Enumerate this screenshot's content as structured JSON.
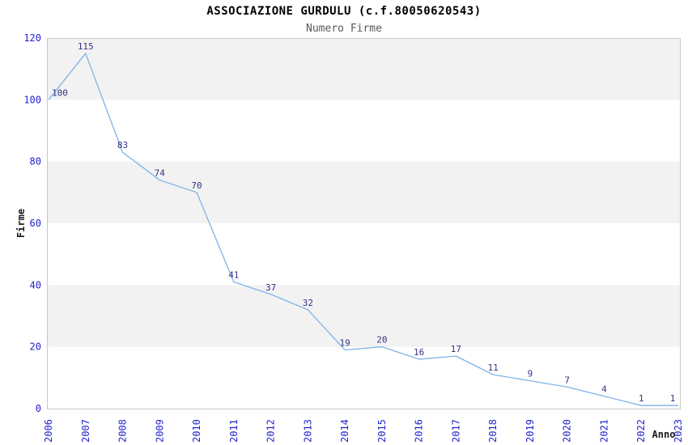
{
  "chart_data": {
    "type": "line",
    "title": "ASSOCIAZIONE GURDULU (c.f.80050620543)",
    "subtitle": "Numero Firme",
    "xlabel": "Anno",
    "ylabel": "Firme",
    "categories": [
      "2006",
      "2007",
      "2008",
      "2009",
      "2010",
      "2011",
      "2012",
      "2013",
      "2014",
      "2015",
      "2016",
      "2017",
      "2018",
      "2019",
      "2020",
      "2021",
      "2022",
      "2023"
    ],
    "values": [
      100,
      115,
      83,
      74,
      70,
      41,
      37,
      32,
      19,
      20,
      16,
      17,
      11,
      9,
      7,
      4,
      1,
      1
    ],
    "ylim": [
      0,
      120
    ],
    "ytick_step": 20,
    "yticks": [
      0,
      20,
      40,
      60,
      80,
      100,
      120
    ],
    "grid": "alternating-horizontal-bands",
    "legend": "none",
    "data_labels_visible": true,
    "x_tick_rotation_deg": 90
  },
  "colors": {
    "line": "#7fb2e8",
    "data_label": "#333385",
    "tick_label": "#2424cc",
    "band": "#f2f2f2",
    "plot_border": "#c8c8c8",
    "title": "#000000",
    "subtitle": "#595959",
    "axis_title": "#1a1a1a",
    "background": "#ffffff"
  }
}
